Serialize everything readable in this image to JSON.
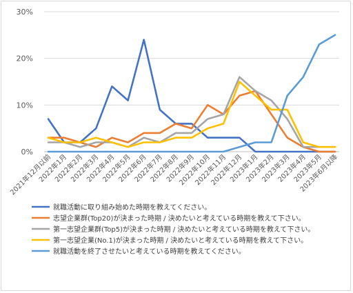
{
  "chart_data": {
    "type": "line",
    "categories": [
      "2021年12月以前",
      "2022年1月",
      "2022年2月",
      "2022年3月",
      "2022年4月",
      "2022年5月",
      "2022年6月",
      "2022年7月",
      "2022年8月",
      "2022年9月",
      "2022年10月",
      "2022年11月",
      "2022年12月",
      "2023年1月",
      "2023年2月",
      "2023年3月",
      "2023年4月",
      "2023年5月",
      "2023年6月以降"
    ],
    "ylim": [
      0,
      30
    ],
    "yticks": [
      0,
      10,
      20,
      30
    ],
    "ytick_labels": [
      "0%",
      "10%",
      "20%",
      "30%"
    ],
    "grid": true,
    "legend_position": "bottom",
    "series": [
      {
        "name": "就職活動に取り組み始めた時期を教えてください。",
        "color": "#4472C4",
        "values": [
          7,
          2,
          2,
          5,
          14,
          11,
          24,
          9,
          6,
          6,
          3,
          3,
          3,
          0,
          0,
          0,
          0,
          0,
          0
        ]
      },
      {
        "name": "志望企業群(Top20)が決まった時期 / 決めたいと考えている時期を教えて下さい。",
        "color": "#ED7D31",
        "values": [
          3,
          3,
          2,
          1,
          3,
          2,
          4,
          4,
          6,
          5,
          10,
          8,
          12,
          13,
          8,
          3,
          1,
          0,
          0
        ]
      },
      {
        "name": "第一志望企業群(Top5)が決まった時期 / 決めたいと考えている時期を教えて下さい。",
        "color": "#A5A5A5",
        "values": [
          2,
          2,
          1,
          2,
          2,
          1,
          3,
          2,
          4,
          4,
          7,
          8,
          16,
          13,
          11,
          7,
          1,
          1,
          1
        ]
      },
      {
        "name": "第一志望企業(No.1)が決まった時期 / 決めたいと考えている時期を教えて下さい。",
        "color": "#FFC000",
        "values": [
          3,
          2,
          2,
          3,
          2,
          1,
          2,
          2,
          3,
          3,
          5,
          6,
          15,
          12,
          9,
          9,
          2,
          1,
          1
        ]
      },
      {
        "name": "就職活動を終了させたいと考えている時期を教えてください。",
        "color": "#5B9BD5",
        "values": [
          0,
          0,
          0,
          0,
          0,
          0,
          0,
          0,
          0,
          0,
          0,
          0,
          1,
          2,
          2,
          12,
          16,
          23,
          25
        ]
      }
    ]
  }
}
